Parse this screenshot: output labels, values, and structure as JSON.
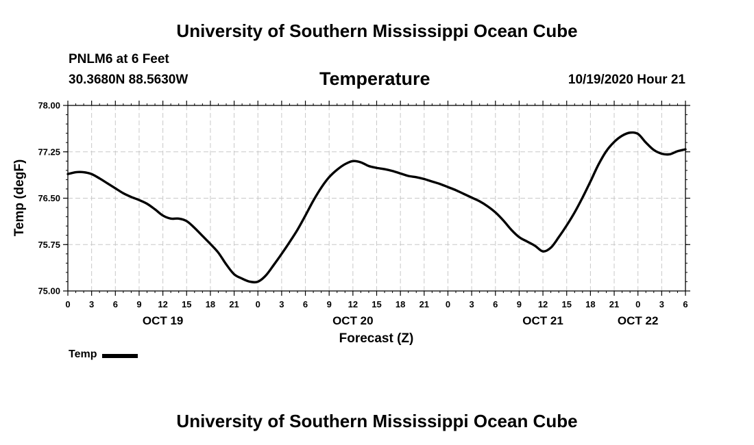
{
  "header": {
    "title": "University of Southern Mississippi Ocean Cube",
    "station": "PNLM6 at 6 Feet",
    "coords": "30.3680N 88.5630W",
    "issued": "10/19/2020 Hour 21"
  },
  "footer": {
    "title": "University of Southern Mississippi Ocean Cube"
  },
  "chart_data": {
    "type": "line",
    "title": "Temperature",
    "xlabel": "Forecast (Z)",
    "ylabel": "Temp (degF)",
    "ylim": [
      75.0,
      78.0
    ],
    "yticks": [
      "75.00",
      "75.75",
      "76.50",
      "77.25",
      "78.00"
    ],
    "xlim_hours": [
      0,
      78
    ],
    "xtick_labels": [
      "0",
      "3",
      "6",
      "9",
      "12",
      "15",
      "18",
      "21",
      "0",
      "3",
      "6",
      "9",
      "12",
      "15",
      "18",
      "21",
      "0",
      "3",
      "6",
      "9",
      "12",
      "15",
      "18",
      "21",
      "0",
      "3",
      "6"
    ],
    "day_labels": [
      {
        "label": "OCT 19",
        "hour": 12
      },
      {
        "label": "OCT 20",
        "hour": 36
      },
      {
        "label": "OCT 21",
        "hour": 60
      },
      {
        "label": "OCT 22",
        "hour": 72
      }
    ],
    "grid": true,
    "legend": "bottom-left",
    "line_color": "#000000",
    "series": [
      {
        "name": "Temp",
        "x": [
          0,
          1,
          2,
          3,
          4,
          5,
          6,
          7,
          8,
          9,
          10,
          11,
          12,
          13,
          14,
          15,
          16,
          17,
          18,
          19,
          20,
          21,
          22,
          23,
          24,
          25,
          26,
          27,
          28,
          29,
          30,
          31,
          32,
          33,
          34,
          35,
          36,
          37,
          38,
          39,
          40,
          41,
          42,
          43,
          44,
          45,
          46,
          47,
          48,
          49,
          50,
          51,
          52,
          53,
          54,
          55,
          56,
          57,
          58,
          59,
          60,
          61,
          62,
          63,
          64,
          65,
          66,
          67,
          68,
          69,
          70,
          71,
          72,
          73,
          74,
          75,
          76,
          77,
          78
        ],
        "values": [
          76.89,
          76.92,
          76.92,
          76.89,
          76.82,
          76.74,
          76.66,
          76.58,
          76.52,
          76.47,
          76.41,
          76.32,
          76.22,
          76.17,
          76.17,
          76.13,
          76.02,
          75.89,
          75.76,
          75.62,
          75.43,
          75.27,
          75.2,
          75.15,
          75.15,
          75.25,
          75.42,
          75.6,
          75.79,
          75.99,
          76.22,
          76.46,
          76.67,
          76.84,
          76.96,
          77.05,
          77.1,
          77.08,
          77.02,
          76.99,
          76.97,
          76.94,
          76.9,
          76.86,
          76.84,
          76.81,
          76.77,
          76.73,
          76.68,
          76.63,
          76.57,
          76.51,
          76.45,
          76.37,
          76.27,
          76.14,
          75.99,
          75.87,
          75.8,
          75.73,
          75.64,
          75.7,
          75.87,
          76.06,
          76.27,
          76.51,
          76.77,
          77.04,
          77.26,
          77.41,
          77.51,
          77.56,
          77.54,
          77.4,
          77.28,
          77.22,
          77.21,
          77.26,
          77.29
        ]
      }
    ]
  }
}
